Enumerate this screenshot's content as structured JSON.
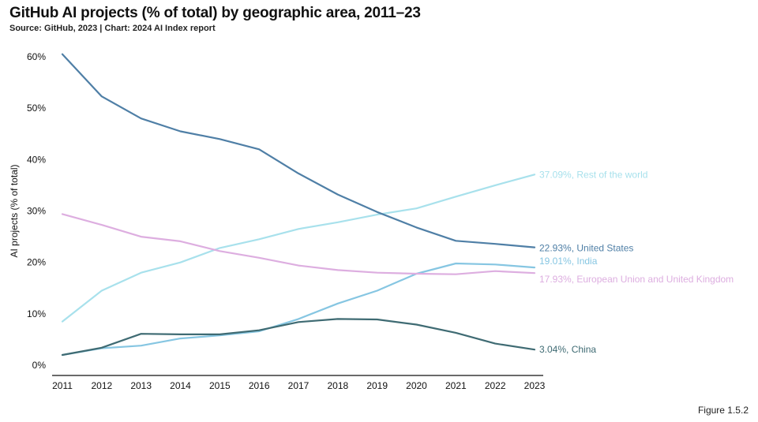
{
  "header": {
    "title": "GitHub AI projects (% of total) by geographic area, 2011–23",
    "source": "Source: GitHub, 2023 | Chart: 2024 AI Index report"
  },
  "footer": {
    "figure_label": "Figure 1.5.2"
  },
  "chart_data": {
    "type": "line",
    "title": "GitHub AI projects (% of total) by geographic area, 2011–23",
    "xlabel": "",
    "ylabel": "AI projects (% of total)",
    "x": [
      2011,
      2012,
      2013,
      2014,
      2015,
      2016,
      2017,
      2018,
      2019,
      2020,
      2021,
      2022,
      2023
    ],
    "ylim": [
      0,
      60
    ],
    "yticks": [
      0,
      10,
      20,
      30,
      40,
      50,
      60
    ],
    "ytick_labels": [
      "0%",
      "10%",
      "20%",
      "30%",
      "40%",
      "50%",
      "60%"
    ],
    "grid": false,
    "legend": "none (labels at line ends)",
    "series": [
      {
        "name": "Rest of the world",
        "end_label": "37.09%, Rest of the world",
        "color": "#a8e1ec",
        "values": [
          8.5,
          14.5,
          18.0,
          20.0,
          22.8,
          24.5,
          26.5,
          27.8,
          29.3,
          30.5,
          32.8,
          35.0,
          37.09
        ]
      },
      {
        "name": "United States",
        "end_label": "22.93%, United States",
        "color": "#4f7fa6",
        "values": [
          60.5,
          52.3,
          48.0,
          45.5,
          44.0,
          42.0,
          37.3,
          33.2,
          29.8,
          26.8,
          24.2,
          23.6,
          22.93
        ]
      },
      {
        "name": "India",
        "end_label": "19.01%, India",
        "color": "#86c6e2",
        "values": [
          2.0,
          3.3,
          3.8,
          5.2,
          5.8,
          6.6,
          9.0,
          12.0,
          14.5,
          17.8,
          19.8,
          19.6,
          19.01
        ]
      },
      {
        "name": "European Union and United Kingdom",
        "end_label": "17.93%, European Union and United Kingdom",
        "color": "#ddaee0",
        "values": [
          29.4,
          27.3,
          25.0,
          24.1,
          22.2,
          20.9,
          19.4,
          18.5,
          18.0,
          17.8,
          17.7,
          18.3,
          17.93
        ]
      },
      {
        "name": "China",
        "end_label": "3.04%, China",
        "color": "#3f6b73",
        "values": [
          2.0,
          3.4,
          6.1,
          6.0,
          6.0,
          6.8,
          8.4,
          9.0,
          8.9,
          7.9,
          6.3,
          4.2,
          3.04
        ]
      }
    ]
  }
}
